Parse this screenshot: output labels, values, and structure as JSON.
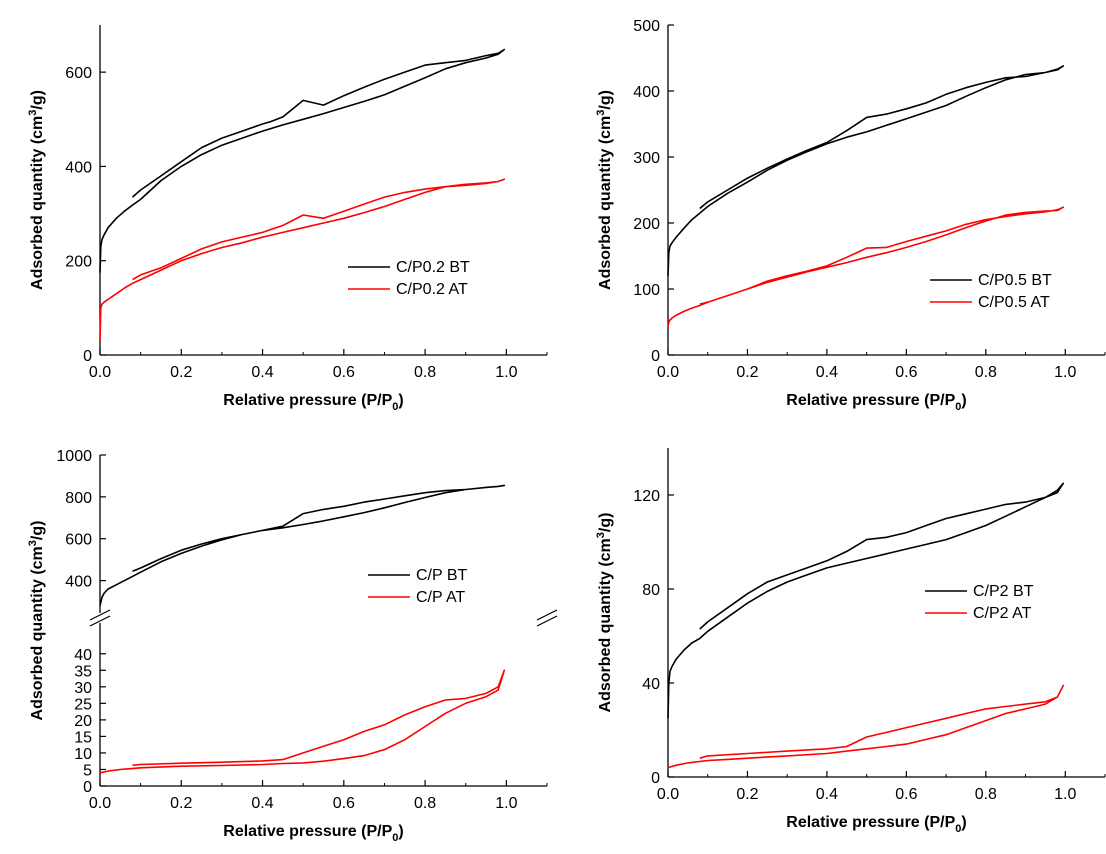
{
  "figure": {
    "xlabel": {
      "main": "Relative pressure (P/P",
      "sub": "0",
      "tail": ")"
    },
    "ylabel": {
      "main": "Adsorbed quantity (cm",
      "sup": "3",
      "tail": "/g)"
    },
    "colors": {
      "BT": "#000000",
      "AT": "#ff0000"
    }
  },
  "chart_data": [
    {
      "type": "line",
      "xlim": [
        0,
        1.1
      ],
      "ylim": [
        0,
        700
      ],
      "xticks": [
        "0.0",
        "0.2",
        "0.4",
        "0.6",
        "0.8",
        "1.0"
      ],
      "yticks": [
        "0",
        "200",
        "400",
        "600"
      ],
      "legend": [
        "C/P0.2 BT",
        "C/P0.2 AT"
      ],
      "legend_position": "lower-right",
      "series": [
        {
          "name": "C/P0.2 BT",
          "color": "#000000",
          "x": [
            0.0,
            0.002,
            0.005,
            0.01,
            0.02,
            0.04,
            0.06,
            0.08,
            0.1,
            0.15,
            0.2,
            0.25,
            0.3,
            0.35,
            0.4,
            0.45,
            0.5,
            0.55,
            0.6,
            0.65,
            0.7,
            0.75,
            0.8,
            0.85,
            0.9,
            0.95,
            0.98,
            0.995,
            0.98,
            0.95,
            0.9,
            0.85,
            0.8,
            0.75,
            0.7,
            0.65,
            0.6,
            0.55,
            0.5,
            0.45,
            0.42,
            0.4,
            0.35,
            0.3,
            0.25,
            0.2,
            0.15,
            0.1,
            0.08
          ],
          "y": [
            175,
            230,
            245,
            255,
            270,
            290,
            305,
            318,
            330,
            370,
            400,
            425,
            445,
            460,
            475,
            488,
            500,
            512,
            525,
            538,
            552,
            570,
            588,
            607,
            620,
            630,
            638,
            648,
            640,
            635,
            625,
            620,
            615,
            600,
            585,
            568,
            550,
            530,
            540,
            505,
            495,
            490,
            475,
            460,
            440,
            410,
            380,
            350,
            335
          ]
        },
        {
          "name": "C/P0.2 AT",
          "color": "#ff0000",
          "x": [
            0.0,
            0.002,
            0.005,
            0.01,
            0.02,
            0.04,
            0.06,
            0.08,
            0.1,
            0.15,
            0.2,
            0.25,
            0.3,
            0.35,
            0.4,
            0.45,
            0.5,
            0.55,
            0.6,
            0.65,
            0.7,
            0.75,
            0.8,
            0.85,
            0.9,
            0.95,
            0.98,
            0.995,
            0.98,
            0.95,
            0.9,
            0.85,
            0.8,
            0.75,
            0.7,
            0.65,
            0.6,
            0.55,
            0.5,
            0.45,
            0.4,
            0.35,
            0.3,
            0.25,
            0.2,
            0.15,
            0.1,
            0.08
          ],
          "y": [
            30,
            100,
            108,
            112,
            118,
            130,
            142,
            152,
            160,
            180,
            200,
            215,
            228,
            238,
            250,
            260,
            270,
            280,
            290,
            302,
            315,
            330,
            345,
            357,
            362,
            365,
            368,
            373,
            368,
            364,
            360,
            357,
            352,
            345,
            335,
            320,
            305,
            290,
            297,
            275,
            260,
            250,
            240,
            225,
            205,
            185,
            170,
            160
          ]
        }
      ]
    },
    {
      "type": "line",
      "xlim": [
        0,
        1.1
      ],
      "ylim": [
        0,
        500
      ],
      "xticks": [
        "0.0",
        "0.2",
        "0.4",
        "0.6",
        "0.8",
        "1.0"
      ],
      "yticks": [
        "0",
        "100",
        "200",
        "300",
        "400",
        "500"
      ],
      "legend": [
        "C/P0.5 BT",
        "C/P0.5 AT"
      ],
      "legend_position": "lower-right",
      "series": [
        {
          "name": "C/P0.5 BT",
          "color": "#000000",
          "x": [
            0.0,
            0.002,
            0.005,
            0.01,
            0.02,
            0.04,
            0.06,
            0.08,
            0.1,
            0.15,
            0.2,
            0.25,
            0.3,
            0.35,
            0.4,
            0.45,
            0.5,
            0.55,
            0.6,
            0.65,
            0.7,
            0.75,
            0.8,
            0.85,
            0.9,
            0.95,
            0.98,
            0.995,
            0.98,
            0.95,
            0.9,
            0.85,
            0.8,
            0.75,
            0.7,
            0.65,
            0.6,
            0.55,
            0.5,
            0.45,
            0.4,
            0.35,
            0.3,
            0.25,
            0.2,
            0.15,
            0.1,
            0.08
          ],
          "y": [
            120,
            155,
            165,
            170,
            178,
            192,
            205,
            215,
            225,
            245,
            262,
            280,
            295,
            308,
            320,
            330,
            338,
            348,
            358,
            368,
            378,
            392,
            405,
            417,
            425,
            428,
            432,
            438,
            433,
            428,
            422,
            420,
            413,
            405,
            395,
            382,
            373,
            365,
            360,
            340,
            322,
            310,
            297,
            283,
            268,
            250,
            232,
            222
          ]
        },
        {
          "name": "C/P0.5 AT",
          "color": "#ff0000",
          "x": [
            0.0,
            0.002,
            0.005,
            0.01,
            0.02,
            0.04,
            0.06,
            0.08,
            0.1,
            0.15,
            0.2,
            0.25,
            0.3,
            0.35,
            0.4,
            0.45,
            0.5,
            0.55,
            0.6,
            0.65,
            0.7,
            0.75,
            0.8,
            0.85,
            0.9,
            0.95,
            0.98,
            0.995,
            0.98,
            0.95,
            0.9,
            0.85,
            0.8,
            0.75,
            0.7,
            0.65,
            0.6,
            0.55,
            0.5,
            0.45,
            0.4,
            0.35,
            0.3,
            0.25,
            0.2,
            0.15,
            0.1,
            0.08
          ],
          "y": [
            42,
            50,
            53,
            56,
            60,
            66,
            71,
            75,
            80,
            90,
            100,
            110,
            118,
            126,
            133,
            140,
            148,
            155,
            163,
            172,
            182,
            193,
            203,
            212,
            216,
            218,
            219,
            224,
            220,
            217,
            214,
            210,
            205,
            198,
            188,
            180,
            172,
            163,
            162,
            148,
            135,
            127,
            120,
            112,
            100,
            90,
            80,
            77
          ]
        }
      ]
    },
    {
      "type": "line",
      "broken_y_axis": true,
      "xlim": [
        0,
        1.1
      ],
      "ylim_upper": [
        250,
        1000
      ],
      "ylim_lower": [
        0,
        49
      ],
      "xticks": [
        "0.0",
        "0.2",
        "0.4",
        "0.6",
        "0.8",
        "1.0"
      ],
      "yticks_upper": [
        "400",
        "600",
        "800",
        "1000"
      ],
      "yticks_lower": [
        "0",
        "5",
        "10",
        "15",
        "20",
        "25",
        "30",
        "35",
        "40"
      ],
      "legend": [
        "C/P BT",
        "C/P AT"
      ],
      "legend_position": "center-right",
      "series": [
        {
          "name": "C/P BT",
          "color": "#000000",
          "x": [
            0.0,
            0.005,
            0.01,
            0.02,
            0.04,
            0.06,
            0.08,
            0.1,
            0.15,
            0.2,
            0.25,
            0.3,
            0.35,
            0.4,
            0.45,
            0.5,
            0.55,
            0.6,
            0.65,
            0.7,
            0.75,
            0.8,
            0.85,
            0.9,
            0.95,
            0.98,
            0.995,
            0.98,
            0.95,
            0.9,
            0.85,
            0.8,
            0.75,
            0.7,
            0.65,
            0.6,
            0.55,
            0.5,
            0.45,
            0.4,
            0.35,
            0.3,
            0.25,
            0.2,
            0.15,
            0.1,
            0.08
          ],
          "y": [
            280,
            320,
            340,
            360,
            380,
            400,
            420,
            440,
            490,
            530,
            565,
            595,
            620,
            640,
            652,
            668,
            685,
            705,
            725,
            748,
            773,
            797,
            820,
            835,
            845,
            850,
            855,
            850,
            845,
            835,
            830,
            820,
            805,
            790,
            775,
            755,
            740,
            720,
            660,
            640,
            620,
            600,
            575,
            545,
            505,
            460,
            445
          ]
        },
        {
          "name": "C/P AT",
          "color": "#ff0000",
          "x": [
            0.0,
            0.02,
            0.05,
            0.1,
            0.2,
            0.3,
            0.4,
            0.45,
            0.5,
            0.55,
            0.6,
            0.65,
            0.7,
            0.75,
            0.8,
            0.85,
            0.9,
            0.95,
            0.98,
            0.995,
            0.98,
            0.95,
            0.9,
            0.85,
            0.8,
            0.75,
            0.7,
            0.65,
            0.6,
            0.55,
            0.5,
            0.45,
            0.4,
            0.3,
            0.2,
            0.1,
            0.08
          ],
          "y": [
            4,
            4.5,
            5,
            5.5,
            6,
            6.2,
            6.5,
            6.8,
            7,
            7.5,
            8.3,
            9.2,
            11,
            14,
            18,
            22,
            25,
            27,
            29,
            35,
            30,
            28,
            26.5,
            26,
            24,
            21.5,
            18.5,
            16.5,
            14,
            12,
            10,
            8,
            7.6,
            7.2,
            6.9,
            6.5,
            6.3
          ]
        }
      ]
    },
    {
      "type": "line",
      "xlim": [
        0,
        1.1
      ],
      "ylim": [
        0,
        140
      ],
      "xticks": [
        "0.0",
        "0.2",
        "0.4",
        "0.6",
        "0.8",
        "1.0"
      ],
      "yticks": [
        "0",
        "40",
        "80",
        "120"
      ],
      "legend": [
        "C/P2 BT",
        "C/P2 AT"
      ],
      "legend_position": "center-right",
      "series": [
        {
          "name": "C/P2 BT",
          "color": "#000000",
          "x": [
            0.0,
            0.002,
            0.005,
            0.01,
            0.02,
            0.04,
            0.06,
            0.08,
            0.1,
            0.15,
            0.2,
            0.25,
            0.3,
            0.35,
            0.4,
            0.45,
            0.5,
            0.55,
            0.6,
            0.65,
            0.7,
            0.75,
            0.8,
            0.85,
            0.9,
            0.95,
            0.98,
            0.995,
            0.98,
            0.95,
            0.9,
            0.85,
            0.8,
            0.75,
            0.7,
            0.65,
            0.6,
            0.55,
            0.5,
            0.45,
            0.4,
            0.35,
            0.3,
            0.25,
            0.2,
            0.15,
            0.1,
            0.08
          ],
          "y": [
            25,
            40,
            45,
            47,
            50,
            54,
            57,
            59,
            62,
            68,
            74,
            79,
            83,
            86,
            89,
            91,
            93,
            95,
            97,
            99,
            101,
            104,
            107,
            111,
            115,
            119,
            122,
            125,
            121,
            119,
            117,
            116,
            114,
            112,
            110,
            107,
            104,
            102,
            101,
            96,
            92,
            89,
            86,
            83,
            78,
            72,
            66,
            63
          ]
        },
        {
          "name": "C/P2 AT",
          "color": "#ff0000",
          "x": [
            0.0,
            0.02,
            0.05,
            0.1,
            0.15,
            0.2,
            0.3,
            0.4,
            0.45,
            0.5,
            0.55,
            0.6,
            0.65,
            0.7,
            0.75,
            0.8,
            0.85,
            0.9,
            0.95,
            0.98,
            0.995,
            0.98,
            0.95,
            0.9,
            0.85,
            0.8,
            0.75,
            0.7,
            0.65,
            0.6,
            0.55,
            0.5,
            0.45,
            0.4,
            0.3,
            0.2,
            0.1,
            0.08
          ],
          "y": [
            4,
            5,
            6,
            7,
            7.5,
            8,
            9,
            10,
            11,
            12,
            13,
            14,
            16,
            18,
            21,
            24,
            27,
            29,
            31,
            34,
            39,
            34,
            32,
            31,
            30,
            29,
            27,
            25,
            23,
            21,
            19,
            17,
            13,
            12,
            11,
            10,
            9,
            8
          ]
        }
      ]
    }
  ]
}
